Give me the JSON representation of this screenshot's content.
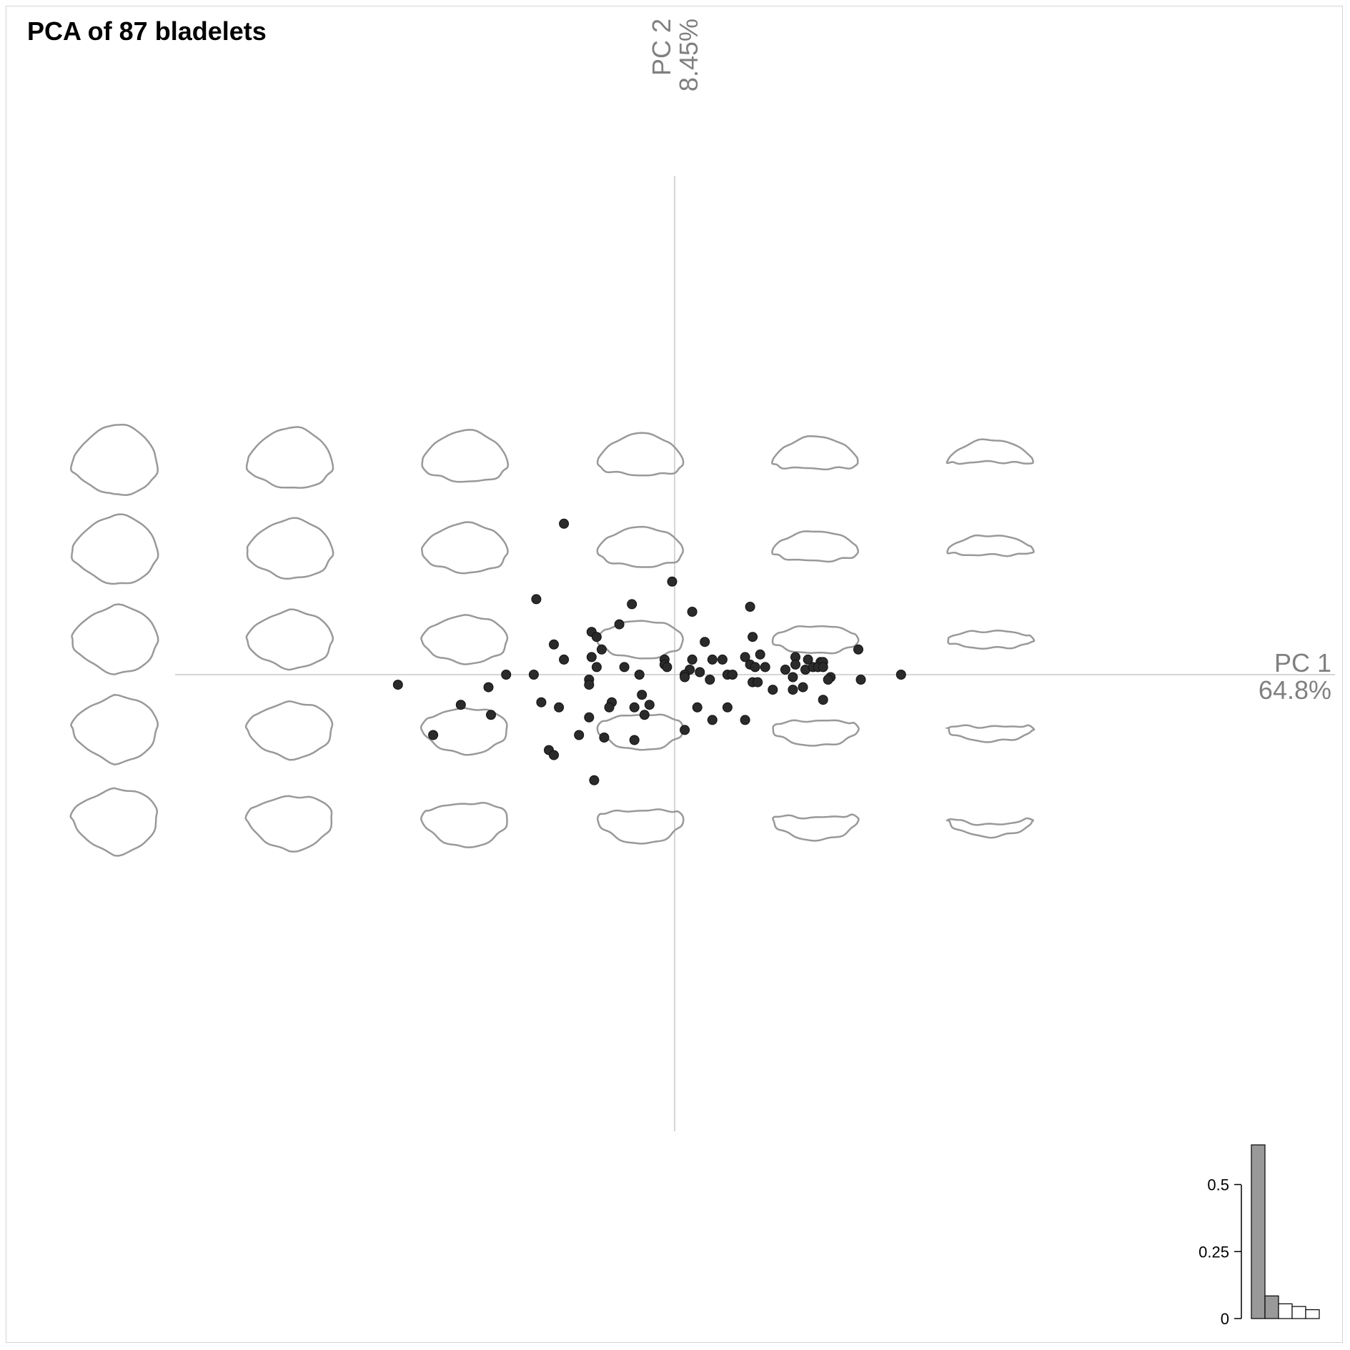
{
  "chart_data": [
    {
      "type": "scatter",
      "title": "PCA of 87 bladelets",
      "xlabel": "PC 1",
      "x_variance": "64.8%",
      "ylabel": "PC 2",
      "y_variance": "8.45%",
      "xlim": [
        -0.175,
        0.205
      ],
      "ylim": [
        -0.128,
        0.128
      ],
      "grid": false,
      "point_color": "#2b2b2b",
      "shape_color": "#999999",
      "axis_color": "#c8c8c8",
      "shape_grid": {
        "columns": 6,
        "rows": 5,
        "description": "theoretical shapes along PC1 and PC2"
      },
      "points": [
        [
          -0.044,
          0.06
        ],
        [
          -0.001,
          0.037
        ],
        [
          -0.055,
          0.03
        ],
        [
          0.03,
          0.027
        ],
        [
          0.007,
          0.025
        ],
        [
          -0.017,
          0.028
        ],
        [
          -0.022,
          0.02
        ],
        [
          -0.033,
          0.017
        ],
        [
          -0.031,
          0.015
        ],
        [
          0.031,
          0.015
        ],
        [
          -0.048,
          0.012
        ],
        [
          -0.029,
          0.01
        ],
        [
          -0.044,
          0.006
        ],
        [
          -0.004,
          0.006
        ],
        [
          0.012,
          0.013
        ],
        [
          -0.033,
          0.007
        ],
        [
          -0.031,
          0.003
        ],
        [
          -0.02,
          0.003
        ],
        [
          -0.004,
          0.004
        ],
        [
          -0.003,
          0.003
        ],
        [
          0.007,
          0.006
        ],
        [
          0.015,
          0.006
        ],
        [
          0.019,
          0.006
        ],
        [
          0.028,
          0.007
        ],
        [
          0.034,
          0.008
        ],
        [
          0.048,
          0.007
        ],
        [
          0.053,
          0.006
        ],
        [
          0.058,
          0.005
        ],
        [
          0.073,
          0.01
        ],
        [
          0.03,
          0.004
        ],
        [
          0.032,
          0.003
        ],
        [
          0.036,
          0.003
        ],
        [
          0.044,
          0.002
        ],
        [
          0.048,
          0.004
        ],
        [
          0.052,
          0.002
        ],
        [
          0.055,
          0.003
        ],
        [
          0.057,
          0.003
        ],
        [
          0.059,
          0.005
        ],
        [
          0.059,
          0.003
        ],
        [
          0.006,
          0.002
        ],
        [
          0.01,
          0.001
        ],
        [
          0.021,
          0.0
        ],
        [
          0.004,
          0.0
        ],
        [
          0.004,
          -0.001
        ],
        [
          -0.014,
          0.0
        ],
        [
          -0.056,
          0.0
        ],
        [
          -0.067,
          0.0
        ],
        [
          -0.11,
          -0.004
        ],
        [
          -0.074,
          -0.005
        ],
        [
          -0.034,
          -0.002
        ],
        [
          -0.034,
          -0.004
        ],
        [
          0.014,
          -0.002
        ],
        [
          0.031,
          -0.003
        ],
        [
          0.033,
          -0.003
        ],
        [
          0.047,
          -0.001
        ],
        [
          0.062,
          -0.001
        ],
        [
          0.074,
          -0.002
        ],
        [
          0.09,
          0.0
        ],
        [
          0.039,
          -0.006
        ],
        [
          0.047,
          -0.006
        ],
        [
          0.051,
          -0.005
        ],
        [
          -0.013,
          -0.008
        ],
        [
          0.059,
          -0.01
        ],
        [
          -0.025,
          -0.011
        ],
        [
          -0.026,
          -0.013
        ],
        [
          -0.016,
          -0.013
        ],
        [
          -0.01,
          -0.012
        ],
        [
          -0.085,
          -0.012
        ],
        [
          -0.053,
          -0.011
        ],
        [
          -0.046,
          -0.013
        ],
        [
          -0.073,
          -0.016
        ],
        [
          -0.012,
          -0.016
        ],
        [
          -0.034,
          -0.017
        ],
        [
          0.009,
          -0.013
        ],
        [
          0.021,
          -0.013
        ],
        [
          0.015,
          -0.018
        ],
        [
          0.028,
          -0.018
        ],
        [
          0.004,
          -0.022
        ],
        [
          -0.096,
          -0.024
        ],
        [
          -0.028,
          -0.025
        ],
        [
          -0.038,
          -0.024
        ],
        [
          -0.016,
          -0.026
        ],
        [
          -0.05,
          -0.03
        ],
        [
          -0.048,
          -0.032
        ],
        [
          -0.032,
          -0.042
        ],
        [
          0.023,
          0.0
        ],
        [
          0.061,
          -0.002
        ]
      ]
    },
    {
      "type": "bar",
      "title": "",
      "xlabel": "",
      "ylabel": "",
      "ylim": [
        0,
        0.648
      ],
      "ticks": [
        "0",
        "0.25",
        "0.5"
      ],
      "tick_values": [
        0,
        0.25,
        0.5
      ],
      "values": [
        0.648,
        0.0845,
        0.055,
        0.045,
        0.033
      ],
      "highlighted_color": "#999999",
      "other_color": "#ffffff"
    }
  ]
}
